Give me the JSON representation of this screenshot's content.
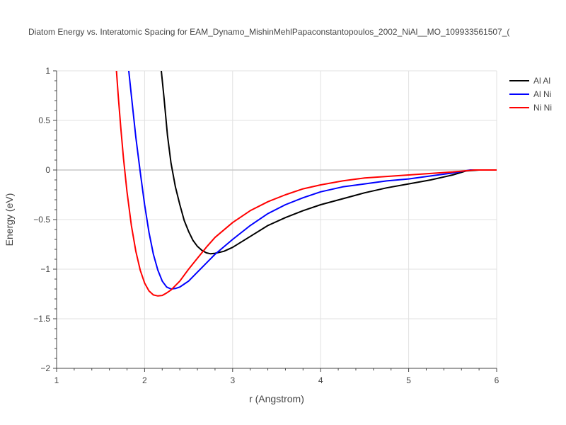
{
  "chart_data": {
    "type": "line",
    "title": "Diatom Energy vs. Interatomic Spacing for EAM_Dynamo_MishinMehlPapaconstantopoulos_2002_NiAl__MO_109933561507_(",
    "xlabel": "r (Angstrom)",
    "ylabel": "Energy (eV)",
    "xlim": [
      1,
      6
    ],
    "ylim": [
      -2,
      1
    ],
    "xticks": [
      "1",
      "2",
      "3",
      "4",
      "5",
      "6"
    ],
    "yticks": [
      "1",
      "0.5",
      "0",
      "−0.5",
      "−1",
      "−1.5",
      "−2"
    ],
    "xtick_values": [
      1,
      2,
      3,
      4,
      5,
      6
    ],
    "ytick_values": [
      1,
      0.5,
      0,
      -0.5,
      -1,
      -1.5,
      -2
    ],
    "grid": true,
    "legend_position": "top-right",
    "series": [
      {
        "name": "Al Al",
        "color": "#000000",
        "x": [
          2.19,
          2.22,
          2.26,
          2.3,
          2.35,
          2.4,
          2.45,
          2.5,
          2.55,
          2.6,
          2.65,
          2.7,
          2.75,
          2.8,
          2.9,
          3.0,
          3.2,
          3.4,
          3.6,
          3.8,
          4.0,
          4.25,
          4.5,
          4.75,
          5.0,
          5.25,
          5.5,
          5.65,
          5.8,
          6.0
        ],
        "y": [
          1.0,
          0.73,
          0.35,
          0.07,
          -0.17,
          -0.35,
          -0.51,
          -0.62,
          -0.71,
          -0.77,
          -0.81,
          -0.835,
          -0.845,
          -0.84,
          -0.82,
          -0.78,
          -0.67,
          -0.56,
          -0.48,
          -0.41,
          -0.35,
          -0.29,
          -0.23,
          -0.18,
          -0.14,
          -0.1,
          -0.05,
          -0.01,
          0.0,
          0.0
        ]
      },
      {
        "name": "Al Ni",
        "color": "#0000ff",
        "x": [
          1.82,
          1.85,
          1.9,
          1.95,
          2.0,
          2.05,
          2.1,
          2.15,
          2.2,
          2.25,
          2.3,
          2.35,
          2.4,
          2.45,
          2.5,
          2.6,
          2.7,
          2.8,
          3.0,
          3.2,
          3.4,
          3.6,
          3.8,
          4.0,
          4.25,
          4.5,
          4.75,
          5.0,
          5.25,
          5.5,
          5.7,
          5.85,
          6.0
        ],
        "y": [
          1.0,
          0.75,
          0.33,
          -0.02,
          -0.35,
          -0.63,
          -0.85,
          -1.01,
          -1.12,
          -1.18,
          -1.2,
          -1.195,
          -1.18,
          -1.15,
          -1.12,
          -1.03,
          -0.94,
          -0.85,
          -0.7,
          -0.56,
          -0.44,
          -0.35,
          -0.28,
          -0.22,
          -0.17,
          -0.14,
          -0.11,
          -0.09,
          -0.06,
          -0.03,
          0.0,
          0.0,
          0.0
        ]
      },
      {
        "name": "Ni Ni",
        "color": "#ff0000",
        "x": [
          1.68,
          1.7,
          1.73,
          1.76,
          1.8,
          1.85,
          1.9,
          1.95,
          2.0,
          2.05,
          2.1,
          2.15,
          2.2,
          2.25,
          2.3,
          2.4,
          2.5,
          2.6,
          2.7,
          2.8,
          3.0,
          3.2,
          3.4,
          3.6,
          3.8,
          4.0,
          4.25,
          4.5,
          5.0,
          5.5,
          5.75,
          6.0
        ],
        "y": [
          1.0,
          0.75,
          0.42,
          0.12,
          -0.22,
          -0.56,
          -0.82,
          -1.01,
          -1.14,
          -1.22,
          -1.26,
          -1.27,
          -1.265,
          -1.24,
          -1.21,
          -1.12,
          -1.0,
          -0.89,
          -0.78,
          -0.68,
          -0.53,
          -0.41,
          -0.32,
          -0.25,
          -0.19,
          -0.15,
          -0.11,
          -0.08,
          -0.05,
          -0.02,
          0.0,
          0.0
        ]
      }
    ]
  }
}
